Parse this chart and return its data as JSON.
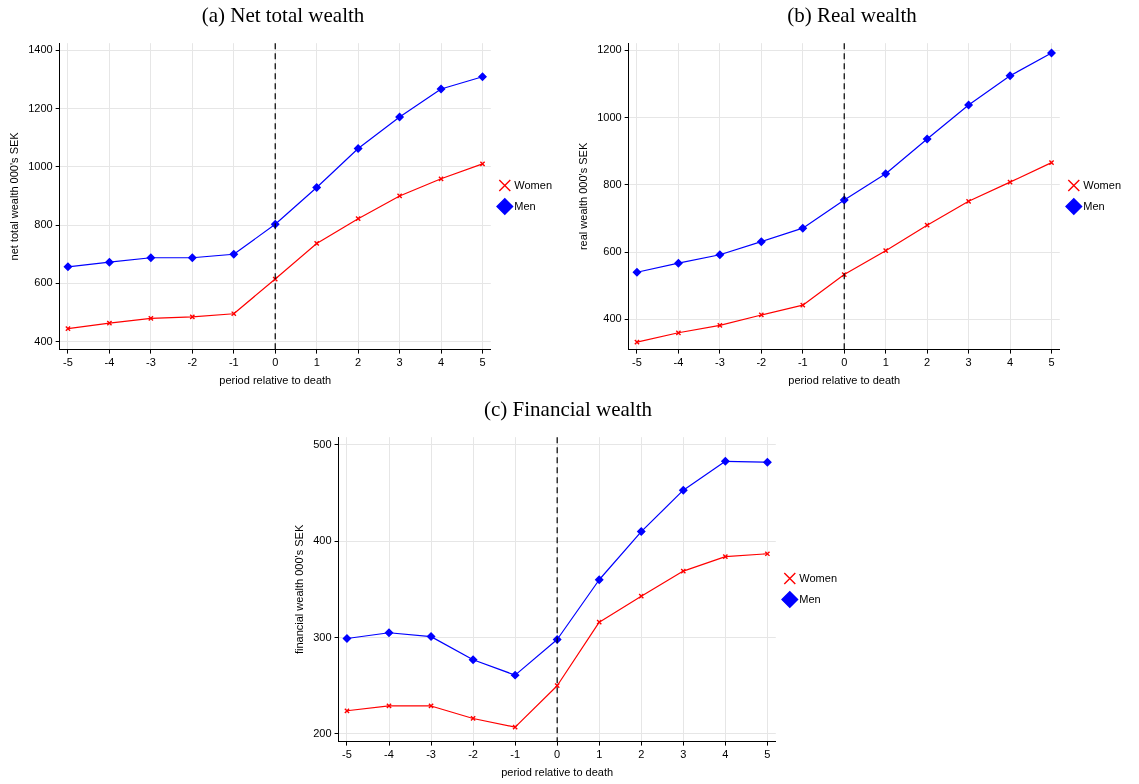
{
  "chart_data": [
    {
      "type": "line",
      "title": "(a) Net total wealth",
      "xlabel": "period relative to death",
      "ylabel": "net total wealth 000's SEK",
      "x": [
        -5,
        -4,
        -3,
        -2,
        -1,
        0,
        1,
        2,
        3,
        4,
        5
      ],
      "xlim": [
        -5.2,
        5.2
      ],
      "xticks": [
        -5,
        -4,
        -3,
        -2,
        -1,
        0,
        1,
        2,
        3,
        4,
        5
      ],
      "ylim": [
        373,
        1424
      ],
      "yticks": [
        400,
        600,
        800,
        1000,
        1200,
        1400
      ],
      "grid": true,
      "legend": "right",
      "line_style": "solid",
      "series": [
        {
          "name": "Women",
          "color": "#ff0000",
          "marker": "cross",
          "values": [
            445,
            464,
            480,
            485,
            496,
            615,
            737,
            822,
            900,
            959,
            1010
          ]
        },
        {
          "name": "Men",
          "color": "#0000ff",
          "marker": "diamond",
          "values": [
            657,
            673,
            688,
            688,
            700,
            803,
            929,
            1063,
            1171,
            1267,
            1309
          ]
        }
      ],
      "ref_lines": [
        {
          "axis": "x",
          "value": 0,
          "color": "#000000",
          "line_style": "dashed"
        }
      ]
    },
    {
      "type": "line",
      "title": "(b) Real wealth",
      "xlabel": "period relative to death",
      "ylabel": "real wealth 000's SEK",
      "x": [
        -5,
        -4,
        -3,
        -2,
        -1,
        0,
        1,
        2,
        3,
        4,
        5
      ],
      "xlim": [
        -5.2,
        5.2
      ],
      "xticks": [
        -5,
        -4,
        -3,
        -2,
        -1,
        0,
        1,
        2,
        3,
        4,
        5
      ],
      "ylim": [
        310,
        1221
      ],
      "yticks": [
        400,
        600,
        800,
        1000,
        1200
      ],
      "grid": true,
      "legend": "right",
      "line_style": "solid",
      "series": [
        {
          "name": "Women",
          "color": "#ff0000",
          "marker": "cross",
          "values": [
            332,
            360,
            382,
            413,
            442,
            533,
            604,
            680,
            751,
            808,
            866
          ]
        },
        {
          "name": "Men",
          "color": "#0000ff",
          "marker": "diamond",
          "values": [
            540,
            567,
            592,
            631,
            671,
            755,
            833,
            936,
            1037,
            1124,
            1192
          ]
        }
      ],
      "ref_lines": [
        {
          "axis": "x",
          "value": 0,
          "color": "#000000",
          "line_style": "dashed"
        }
      ]
    },
    {
      "type": "line",
      "title": "(c) Financial wealth",
      "xlabel": "period relative to death",
      "ylabel": "financial wealth 000's SEK",
      "x": [
        -5,
        -4,
        -3,
        -2,
        -1,
        0,
        1,
        2,
        3,
        4,
        5
      ],
      "xlim": [
        -5.2,
        5.2
      ],
      "xticks": [
        -5,
        -4,
        -3,
        -2,
        -1,
        0,
        1,
        2,
        3,
        4,
        5
      ],
      "ylim": [
        192,
        508
      ],
      "yticks": [
        200,
        300,
        400,
        500
      ],
      "grid": true,
      "legend": "right",
      "line_style": "solid",
      "series": [
        {
          "name": "Women",
          "color": "#ff0000",
          "marker": "cross",
          "values": [
            224,
            229,
            229,
            216,
            207,
            250,
            316,
            343,
            369,
            384,
            387
          ]
        },
        {
          "name": "Men",
          "color": "#0000ff",
          "marker": "diamond",
          "values": [
            299,
            305,
            301,
            277,
            261,
            298,
            360,
            410,
            453,
            483,
            482
          ]
        }
      ],
      "ref_lines": [
        {
          "axis": "x",
          "value": 0,
          "color": "#000000",
          "line_style": "dashed"
        }
      ]
    }
  ]
}
